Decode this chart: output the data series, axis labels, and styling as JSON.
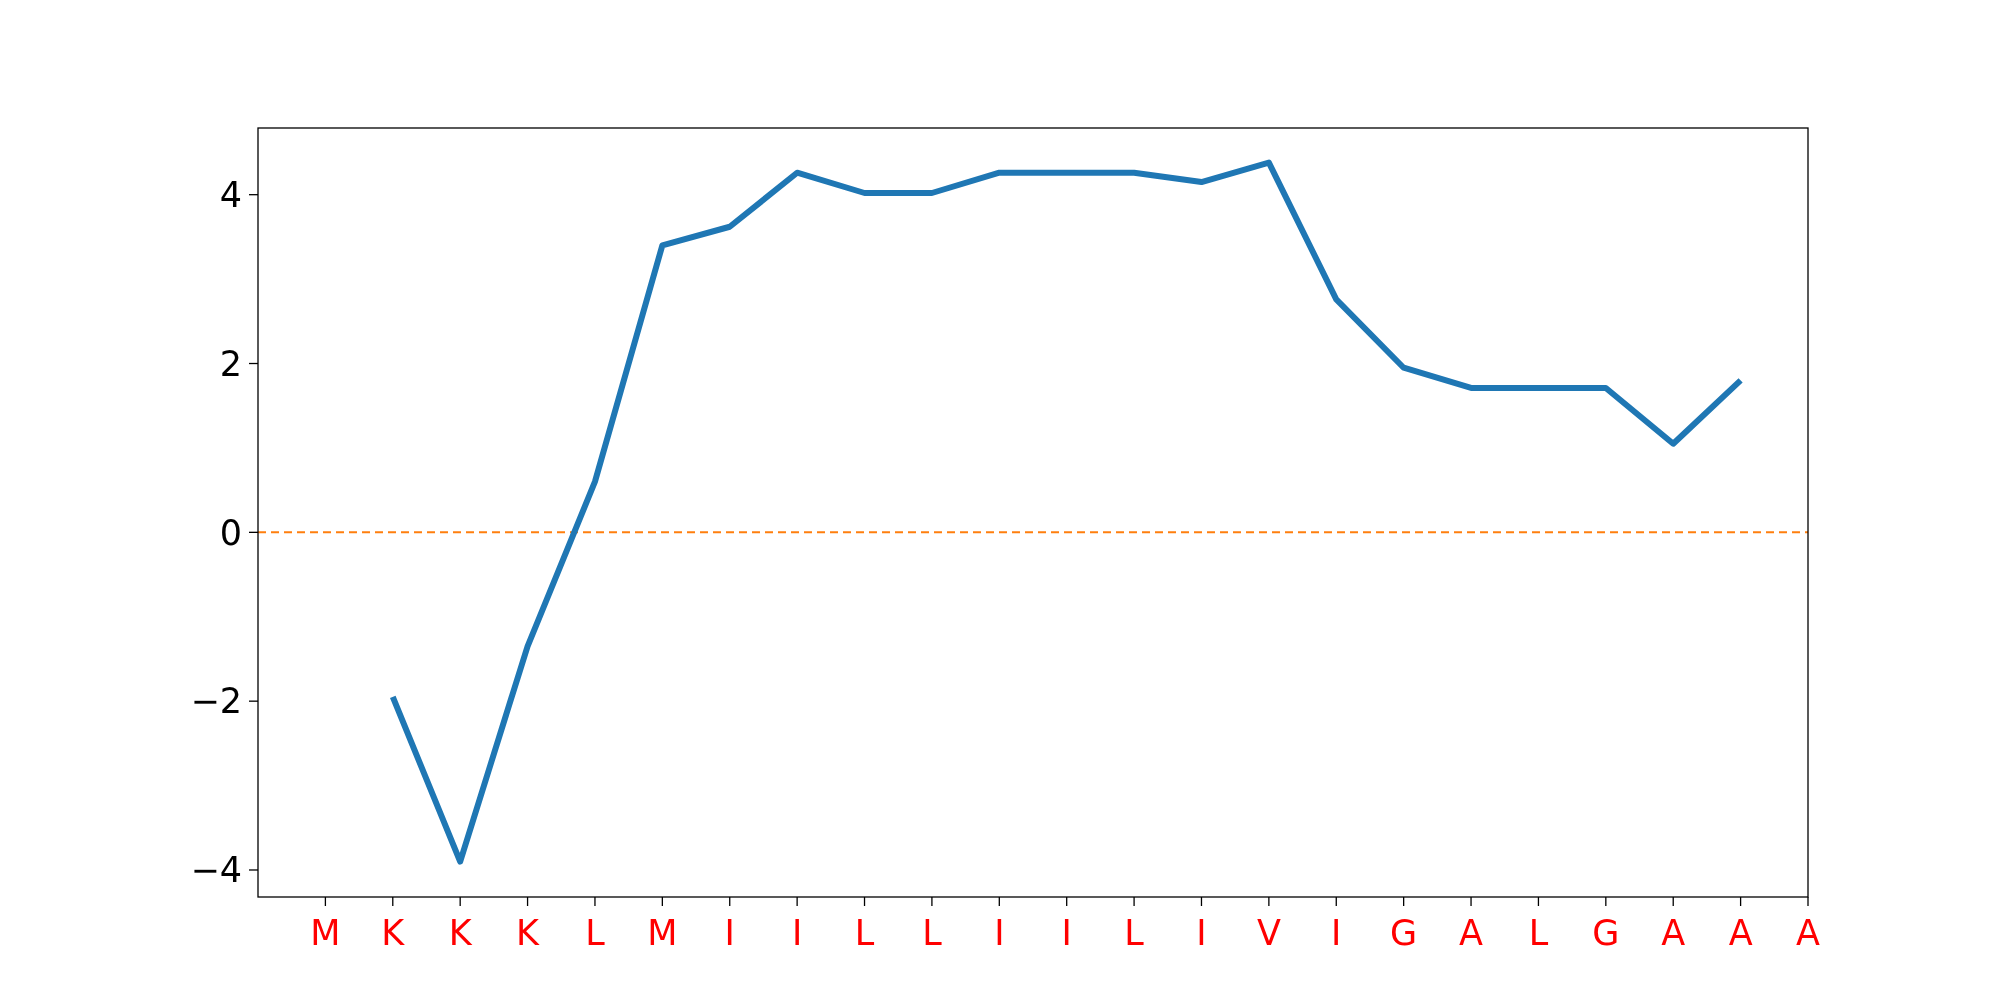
{
  "chart_data": {
    "type": "line",
    "categories": [
      "M",
      "K",
      "K",
      "K",
      "L",
      "M",
      "I",
      "I",
      "L",
      "L",
      "I",
      "I",
      "L",
      "I",
      "V",
      "I",
      "G",
      "A",
      "L",
      "G",
      "A",
      "A",
      "A"
    ],
    "series": [
      {
        "color": "#1f77b4",
        "values": [
          null,
          -1.95,
          -3.9,
          -1.35,
          0.6,
          3.4,
          3.62,
          4.26,
          4.02,
          4.02,
          4.26,
          4.26,
          4.26,
          4.15,
          4.38,
          2.76,
          1.95,
          1.71,
          1.71,
          1.71,
          1.05,
          1.8,
          null
        ]
      }
    ],
    "ylim": [
      -4.32,
      4.79
    ],
    "yticks": [
      {
        "value": -4,
        "label": "−4"
      },
      {
        "value": -2,
        "label": "−2"
      },
      0,
      2,
      4
    ],
    "ref_lines": [
      {
        "axis": "y",
        "value": 0,
        "color": "#ff7f0e",
        "line_style": "dashed"
      }
    ],
    "grid": false,
    "marker": "none",
    "line_style": "solid"
  }
}
